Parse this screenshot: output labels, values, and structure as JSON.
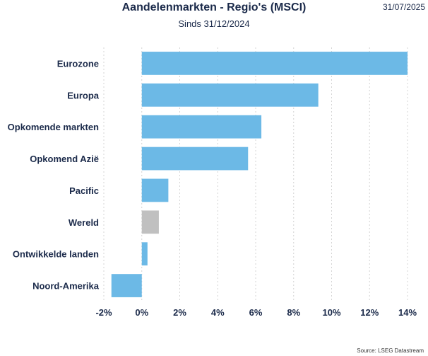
{
  "header": {
    "title": "Aandelenmarkten - Regio's (MSCI)",
    "subtitle": "Sinds 31/12/2024",
    "date": "31/07/2025"
  },
  "footer": {
    "source": "Source: LSEG Datastream"
  },
  "colors": {
    "bar": "#6cb9e6",
    "highlight": "#c0c0c0",
    "grid": "#d4d4d4",
    "text": "#1b2a4a"
  },
  "chart_data": {
    "type": "bar",
    "orientation": "horizontal",
    "title": "Aandelenmarkten - Regio's (MSCI)",
    "subtitle": "Sinds 31/12/2024",
    "categories": [
      "Eurozone",
      "Europa",
      "Opkomende markten",
      "Opkomend Azië",
      "Pacific",
      "Wereld",
      "Ontwikkelde landen",
      "Noord-Amerika"
    ],
    "values": [
      14.0,
      9.3,
      6.3,
      5.6,
      1.4,
      0.9,
      0.3,
      -1.6
    ],
    "highlight": [
      "Wereld"
    ],
    "xlim": [
      -2,
      14
    ],
    "xticks": [
      -2,
      0,
      2,
      4,
      6,
      8,
      10,
      12,
      14
    ],
    "xtick_labels": [
      "-2%",
      "0%",
      "2%",
      "4%",
      "6%",
      "8%",
      "10%",
      "12%",
      "14%"
    ],
    "grid": "vertical dotted",
    "legend": "none"
  }
}
